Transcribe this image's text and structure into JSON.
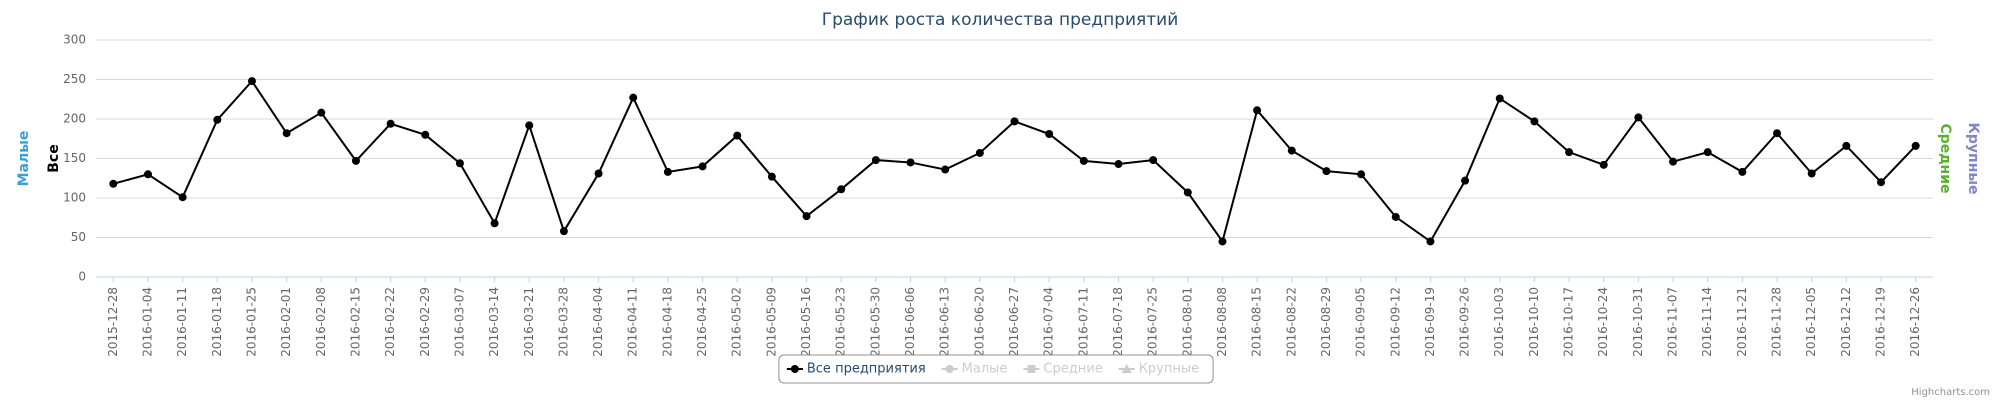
{
  "chart_data": {
    "type": "line",
    "title": "График роста количества предприятий",
    "categories": [
      "2015-12-28",
      "2016-01-04",
      "2016-01-11",
      "2016-01-18",
      "2016-01-25",
      "2016-02-01",
      "2016-02-08",
      "2016-02-15",
      "2016-02-22",
      "2016-02-29",
      "2016-03-07",
      "2016-03-14",
      "2016-03-21",
      "2016-03-28",
      "2016-04-04",
      "2016-04-11",
      "2016-04-18",
      "2016-04-25",
      "2016-05-02",
      "2016-05-09",
      "2016-05-16",
      "2016-05-23",
      "2016-05-30",
      "2016-06-06",
      "2016-06-13",
      "2016-06-20",
      "2016-06-27",
      "2016-07-04",
      "2016-07-11",
      "2016-07-18",
      "2016-07-25",
      "2016-08-01",
      "2016-08-08",
      "2016-08-15",
      "2016-08-22",
      "2016-08-29",
      "2016-09-05",
      "2016-09-12",
      "2016-09-19",
      "2016-09-26",
      "2016-10-03",
      "2016-10-10",
      "2016-10-17",
      "2016-10-24",
      "2016-10-31",
      "2016-11-07",
      "2016-11-14",
      "2016-11-21",
      "2016-11-28",
      "2016-12-05",
      "2016-12-12",
      "2016-12-19",
      "2016-12-26"
    ],
    "series": [
      {
        "name": "Все предприятия",
        "color": "#000000",
        "visible": true,
        "values": [
          118,
          130,
          101,
          199,
          248,
          182,
          208,
          147,
          194,
          180,
          144,
          68,
          192,
          58,
          131,
          227,
          133,
          140,
          179,
          127,
          77,
          111,
          148,
          145,
          136,
          157,
          197,
          181,
          147,
          143,
          148,
          107,
          45,
          211,
          160,
          134,
          130,
          76,
          45,
          122,
          226,
          197,
          158,
          142,
          202,
          146,
          158,
          133,
          182,
          131,
          166,
          120,
          166
        ]
      },
      {
        "name": "Малые",
        "color": "#cccccc",
        "visible": false
      },
      {
        "name": "Средние",
        "color": "#cccccc",
        "visible": false
      },
      {
        "name": "Крупные",
        "color": "#cccccc",
        "visible": false
      }
    ],
    "y_axis_titles": [
      {
        "text": "Малые",
        "color": "#3aa0d4",
        "side": "left"
      },
      {
        "text": "Все",
        "color": "#000000",
        "side": "left"
      },
      {
        "text": "Средние",
        "color": "#5bb030",
        "side": "right"
      },
      {
        "text": "Крупные",
        "color": "#8085c9",
        "side": "right"
      }
    ],
    "ylim": [
      0,
      300
    ],
    "yticks": [
      0,
      50,
      100,
      150,
      200,
      250,
      300
    ],
    "grid": true,
    "legend": "bottom",
    "credits": "Highcharts.com"
  }
}
